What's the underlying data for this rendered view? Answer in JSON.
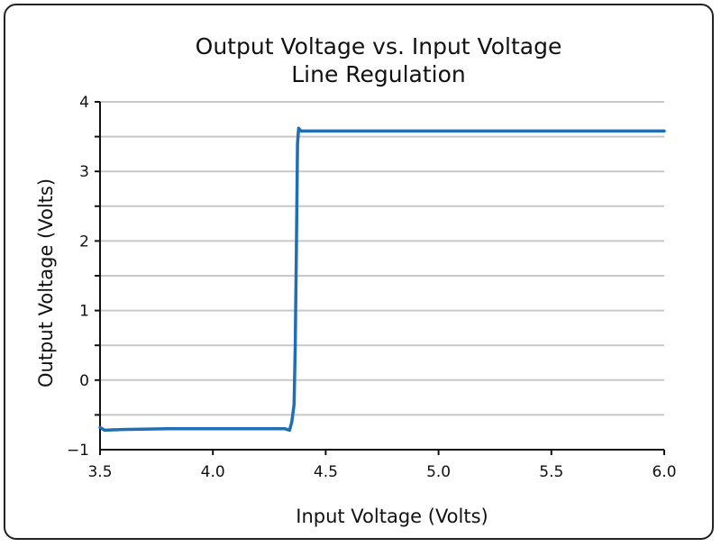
{
  "chart_data": {
    "type": "line",
    "title": "Output Voltage vs. Input Voltage",
    "subtitle": "Line Regulation",
    "xlabel": "Input Voltage (Volts)",
    "ylabel": "Output Voltage (Volts)",
    "xlim": [
      3.5,
      6.0
    ],
    "ylim": [
      -1,
      4
    ],
    "xticks": [
      3.5,
      4.0,
      4.5,
      5.0,
      5.5,
      6.0
    ],
    "xtick_labels": [
      "3.5",
      "4.0",
      "4.5",
      "5.0",
      "5.5",
      "6.0"
    ],
    "yticks": [
      -1,
      0,
      1,
      2,
      3,
      4
    ],
    "ytick_labels": [
      "−1",
      "0",
      "1",
      "2",
      "3",
      "4"
    ],
    "gridlines_y": [
      -0.5,
      0,
      0.5,
      1,
      1.5,
      2,
      2.5,
      3,
      3.5,
      4
    ],
    "grid": true,
    "colors": {
      "line": "#1f6fb2",
      "grid": "#c8c8c8",
      "axis": "#111111"
    },
    "series": [
      {
        "x": [
          3.5,
          3.52,
          3.6,
          3.8,
          4.0,
          4.2,
          4.32,
          4.34,
          4.35,
          4.36,
          4.365,
          4.37,
          4.375,
          4.38,
          4.39,
          4.45,
          5.0,
          5.5,
          6.0
        ],
        "y": [
          -0.68,
          -0.72,
          -0.71,
          -0.7,
          -0.7,
          -0.7,
          -0.7,
          -0.72,
          -0.6,
          -0.35,
          0.5,
          1.8,
          3.4,
          3.62,
          3.58,
          3.58,
          3.58,
          3.58,
          3.58
        ]
      }
    ]
  }
}
